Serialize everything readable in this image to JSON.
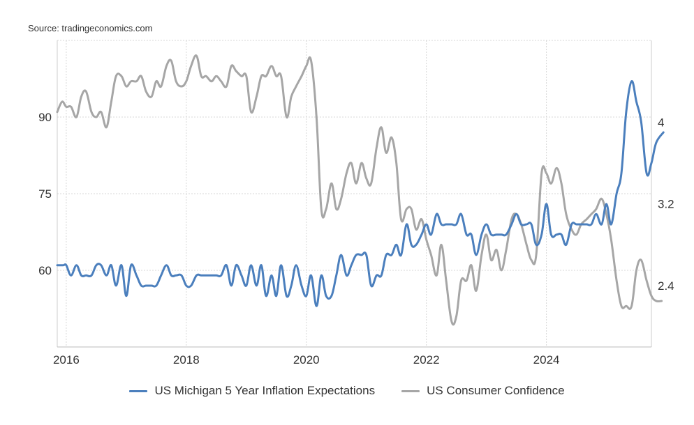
{
  "source": "Source: tradingeconomics.com",
  "colors": {
    "inflation": "#4b7fbd",
    "confidence": "#a6a6a6",
    "grid": "#d7d7d7",
    "text": "#333333"
  },
  "chart_data": {
    "type": "line",
    "title": "",
    "xlabel": "",
    "ylabel_left": "",
    "ylabel_right": "",
    "x_range": [
      2015.85,
      2025.75
    ],
    "x_ticks": [
      2016,
      2018,
      2020,
      2022,
      2024
    ],
    "x_tick_labels": [
      "2016",
      "2018",
      "2020",
      "2022",
      "2024"
    ],
    "left_axis": {
      "ylim": [
        45,
        105
      ],
      "ticks": [
        60,
        75,
        90
      ],
      "tick_labels": [
        "60",
        "75",
        "90"
      ]
    },
    "right_axis": {
      "ylim": [
        1.8,
        4.8
      ],
      "ticks": [
        2.4,
        3.2,
        4
      ],
      "tick_labels": [
        "2.4",
        "3.2",
        "4"
      ]
    },
    "grid": true,
    "legend_position": "bottom",
    "series": [
      {
        "name": "US Michigan 5 Year Inflation Expectations",
        "axis": "right",
        "color": "#4b7fbd",
        "points": [
          [
            2015.85,
            2.6
          ],
          [
            2015.95,
            2.6
          ],
          [
            2016.0,
            2.6
          ],
          [
            2016.08,
            2.5
          ],
          [
            2016.17,
            2.6
          ],
          [
            2016.25,
            2.5
          ],
          [
            2016.33,
            2.5
          ],
          [
            2016.42,
            2.5
          ],
          [
            2016.5,
            2.6
          ],
          [
            2016.58,
            2.6
          ],
          [
            2016.67,
            2.5
          ],
          [
            2016.75,
            2.6
          ],
          [
            2016.83,
            2.4
          ],
          [
            2016.92,
            2.6
          ],
          [
            2017.0,
            2.3
          ],
          [
            2017.08,
            2.6
          ],
          [
            2017.17,
            2.5
          ],
          [
            2017.25,
            2.4
          ],
          [
            2017.33,
            2.4
          ],
          [
            2017.42,
            2.4
          ],
          [
            2017.5,
            2.4
          ],
          [
            2017.58,
            2.5
          ],
          [
            2017.67,
            2.6
          ],
          [
            2017.75,
            2.5
          ],
          [
            2017.83,
            2.5
          ],
          [
            2017.92,
            2.5
          ],
          [
            2018.0,
            2.4
          ],
          [
            2018.08,
            2.4
          ],
          [
            2018.17,
            2.5
          ],
          [
            2018.25,
            2.5
          ],
          [
            2018.33,
            2.5
          ],
          [
            2018.42,
            2.5
          ],
          [
            2018.5,
            2.5
          ],
          [
            2018.58,
            2.5
          ],
          [
            2018.67,
            2.6
          ],
          [
            2018.75,
            2.4
          ],
          [
            2018.83,
            2.6
          ],
          [
            2018.92,
            2.5
          ],
          [
            2019.0,
            2.4
          ],
          [
            2019.08,
            2.6
          ],
          [
            2019.17,
            2.4
          ],
          [
            2019.25,
            2.6
          ],
          [
            2019.33,
            2.3
          ],
          [
            2019.42,
            2.5
          ],
          [
            2019.5,
            2.3
          ],
          [
            2019.58,
            2.6
          ],
          [
            2019.67,
            2.3
          ],
          [
            2019.75,
            2.4
          ],
          [
            2019.83,
            2.6
          ],
          [
            2019.92,
            2.4
          ],
          [
            2020.0,
            2.3
          ],
          [
            2020.08,
            2.5
          ],
          [
            2020.17,
            2.2
          ],
          [
            2020.25,
            2.5
          ],
          [
            2020.33,
            2.3
          ],
          [
            2020.42,
            2.3
          ],
          [
            2020.5,
            2.5
          ],
          [
            2020.58,
            2.7
          ],
          [
            2020.67,
            2.5
          ],
          [
            2020.75,
            2.6
          ],
          [
            2020.83,
            2.7
          ],
          [
            2020.92,
            2.7
          ],
          [
            2021.0,
            2.7
          ],
          [
            2021.08,
            2.4
          ],
          [
            2021.17,
            2.5
          ],
          [
            2021.25,
            2.5
          ],
          [
            2021.33,
            2.7
          ],
          [
            2021.42,
            2.7
          ],
          [
            2021.5,
            2.8
          ],
          [
            2021.58,
            2.7
          ],
          [
            2021.67,
            3.0
          ],
          [
            2021.75,
            2.8
          ],
          [
            2021.83,
            2.8
          ],
          [
            2021.92,
            2.9
          ],
          [
            2022.0,
            3.0
          ],
          [
            2022.08,
            2.9
          ],
          [
            2022.17,
            3.1
          ],
          [
            2022.25,
            3.0
          ],
          [
            2022.33,
            3.0
          ],
          [
            2022.42,
            3.0
          ],
          [
            2022.5,
            3.0
          ],
          [
            2022.58,
            3.1
          ],
          [
            2022.67,
            2.9
          ],
          [
            2022.75,
            2.9
          ],
          [
            2022.83,
            2.7
          ],
          [
            2022.92,
            2.9
          ],
          [
            2023.0,
            3.0
          ],
          [
            2023.08,
            2.9
          ],
          [
            2023.17,
            2.9
          ],
          [
            2023.25,
            2.9
          ],
          [
            2023.33,
            2.9
          ],
          [
            2023.42,
            3.0
          ],
          [
            2023.5,
            3.1
          ],
          [
            2023.58,
            3.0
          ],
          [
            2023.67,
            3.0
          ],
          [
            2023.75,
            3.0
          ],
          [
            2023.83,
            2.8
          ],
          [
            2023.92,
            2.9
          ],
          [
            2024.0,
            3.2
          ],
          [
            2024.08,
            2.9
          ],
          [
            2024.17,
            2.9
          ],
          [
            2024.25,
            2.9
          ],
          [
            2024.33,
            2.8
          ],
          [
            2024.42,
            3.0
          ],
          [
            2024.5,
            3.0
          ],
          [
            2024.58,
            3.0
          ],
          [
            2024.67,
            3.0
          ],
          [
            2024.75,
            3.0
          ],
          [
            2024.83,
            3.1
          ],
          [
            2024.92,
            3.0
          ],
          [
            2025.0,
            3.2
          ],
          [
            2025.08,
            3.0
          ],
          [
            2025.17,
            3.3
          ],
          [
            2025.25,
            3.5
          ],
          [
            2025.33,
            4.1
          ],
          [
            2025.42,
            4.4
          ],
          [
            2025.5,
            4.2
          ],
          [
            2025.58,
            4.0
          ],
          [
            2025.67,
            3.5
          ],
          [
            2025.75,
            3.6
          ],
          [
            2025.83,
            3.8
          ],
          [
            2025.95,
            3.9
          ]
        ]
      },
      {
        "name": "US Consumer Confidence",
        "axis": "left",
        "color": "#a6a6a6",
        "points": [
          [
            2015.85,
            91
          ],
          [
            2015.93,
            93
          ],
          [
            2016.0,
            92
          ],
          [
            2016.08,
            92
          ],
          [
            2016.17,
            90
          ],
          [
            2016.25,
            94
          ],
          [
            2016.33,
            95
          ],
          [
            2016.42,
            91
          ],
          [
            2016.5,
            90
          ],
          [
            2016.58,
            91
          ],
          [
            2016.67,
            88
          ],
          [
            2016.75,
            93
          ],
          [
            2016.83,
            98
          ],
          [
            2016.92,
            98
          ],
          [
            2017.0,
            96
          ],
          [
            2017.08,
            97
          ],
          [
            2017.17,
            97
          ],
          [
            2017.25,
            98
          ],
          [
            2017.33,
            95
          ],
          [
            2017.42,
            94
          ],
          [
            2017.5,
            97
          ],
          [
            2017.58,
            96
          ],
          [
            2017.67,
            100
          ],
          [
            2017.75,
            101
          ],
          [
            2017.83,
            97
          ],
          [
            2017.92,
            96
          ],
          [
            2018.0,
            97
          ],
          [
            2018.08,
            100
          ],
          [
            2018.17,
            102
          ],
          [
            2018.25,
            98
          ],
          [
            2018.33,
            98
          ],
          [
            2018.42,
            97
          ],
          [
            2018.5,
            98
          ],
          [
            2018.58,
            97
          ],
          [
            2018.67,
            96
          ],
          [
            2018.75,
            100
          ],
          [
            2018.83,
            99
          ],
          [
            2018.92,
            98
          ],
          [
            2019.0,
            98
          ],
          [
            2019.08,
            91
          ],
          [
            2019.17,
            94
          ],
          [
            2019.25,
            98
          ],
          [
            2019.33,
            98
          ],
          [
            2019.42,
            100
          ],
          [
            2019.5,
            98
          ],
          [
            2019.58,
            98
          ],
          [
            2019.67,
            90
          ],
          [
            2019.75,
            94
          ],
          [
            2019.83,
            96
          ],
          [
            2019.92,
            98
          ],
          [
            2020.0,
            100
          ],
          [
            2020.08,
            101
          ],
          [
            2020.17,
            90
          ],
          [
            2020.25,
            72
          ],
          [
            2020.33,
            72
          ],
          [
            2020.42,
            77
          ],
          [
            2020.5,
            72
          ],
          [
            2020.58,
            74
          ],
          [
            2020.67,
            79
          ],
          [
            2020.75,
            81
          ],
          [
            2020.83,
            77
          ],
          [
            2020.92,
            81
          ],
          [
            2021.0,
            78
          ],
          [
            2021.08,
            77
          ],
          [
            2021.17,
            84
          ],
          [
            2021.25,
            88
          ],
          [
            2021.33,
            83
          ],
          [
            2021.42,
            86
          ],
          [
            2021.5,
            81
          ],
          [
            2021.58,
            70
          ],
          [
            2021.67,
            72
          ],
          [
            2021.75,
            72
          ],
          [
            2021.83,
            68
          ],
          [
            2021.92,
            70
          ],
          [
            2022.0,
            66
          ],
          [
            2022.08,
            63
          ],
          [
            2022.17,
            59
          ],
          [
            2022.25,
            65
          ],
          [
            2022.33,
            58
          ],
          [
            2022.42,
            50
          ],
          [
            2022.5,
            51
          ],
          [
            2022.58,
            58
          ],
          [
            2022.67,
            58
          ],
          [
            2022.75,
            61
          ],
          [
            2022.83,
            56
          ],
          [
            2022.92,
            63
          ],
          [
            2023.0,
            67
          ],
          [
            2023.08,
            62
          ],
          [
            2023.17,
            64
          ],
          [
            2023.25,
            60
          ],
          [
            2023.33,
            64
          ],
          [
            2023.42,
            70
          ],
          [
            2023.5,
            71
          ],
          [
            2023.58,
            69
          ],
          [
            2023.67,
            65
          ],
          [
            2023.75,
            62
          ],
          [
            2023.83,
            63
          ],
          [
            2023.92,
            79
          ],
          [
            2024.0,
            79
          ],
          [
            2024.08,
            77
          ],
          [
            2024.17,
            80
          ],
          [
            2024.25,
            77
          ],
          [
            2024.33,
            71
          ],
          [
            2024.42,
            68
          ],
          [
            2024.5,
            67
          ],
          [
            2024.58,
            69
          ],
          [
            2024.67,
            70
          ],
          [
            2024.75,
            71
          ],
          [
            2024.83,
            72
          ],
          [
            2024.92,
            74
          ],
          [
            2025.0,
            71
          ],
          [
            2025.08,
            66
          ],
          [
            2025.17,
            58
          ],
          [
            2025.25,
            53
          ],
          [
            2025.33,
            53
          ],
          [
            2025.42,
            53
          ],
          [
            2025.5,
            60
          ],
          [
            2025.58,
            62
          ],
          [
            2025.67,
            58
          ],
          [
            2025.75,
            55
          ],
          [
            2025.83,
            54
          ],
          [
            2025.92,
            54
          ]
        ]
      }
    ]
  }
}
